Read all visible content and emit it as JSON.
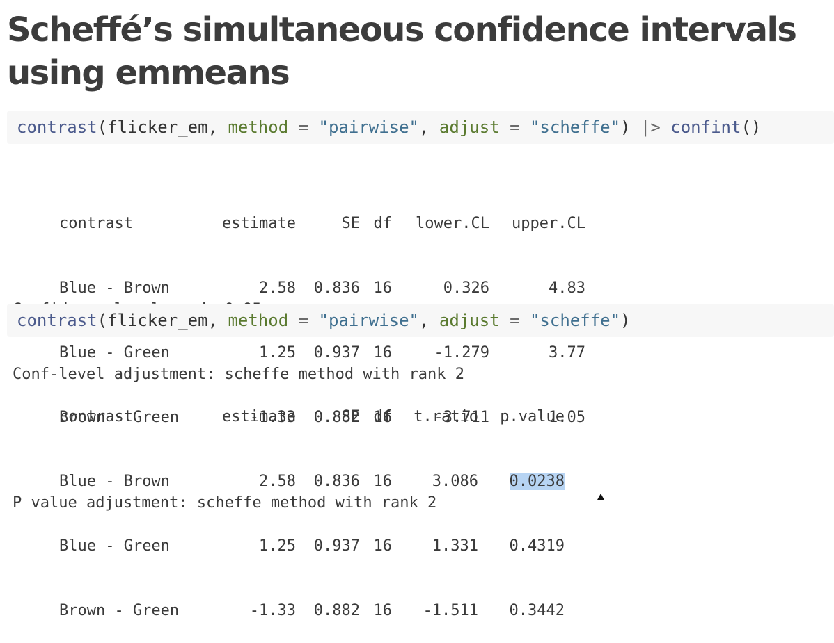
{
  "title": "Scheffé’s simultaneous confidence intervals using emmeans",
  "code1": {
    "fn": "contrast",
    "open": "(",
    "arg": "flicker_em",
    "comma1": ", ",
    "param1": "method",
    "eq1": " = ",
    "val1": "\"pairwise\"",
    "comma2": ", ",
    "param2": "adjust",
    "eq2": " = ",
    "val2": "\"scheffe\"",
    "close": ")",
    "pipe": " |> ",
    "fn2": "confint",
    "parens2": "()"
  },
  "output1": {
    "headers": [
      "contrast",
      "estimate",
      "SE",
      "df",
      "lower.CL",
      "upper.CL"
    ],
    "rows": [
      [
        "Blue - Brown",
        "2.58",
        "0.836",
        "16",
        "0.326",
        "4.83"
      ],
      [
        "Blue - Green",
        "1.25",
        "0.937",
        "16",
        "-1.279",
        "3.77"
      ],
      [
        "Brown - Green",
        "-1.33",
        "0.882",
        "16",
        "-3.711",
        "1.05"
      ]
    ],
    "note1": "Confidence level used: 0.95",
    "note2": "Conf-level adjustment: scheffe method with rank 2"
  },
  "code2": {
    "fn": "contrast",
    "open": "(",
    "arg": "flicker_em",
    "comma1": ", ",
    "param1": "method",
    "eq1": " = ",
    "val1": "\"pairwise\"",
    "comma2": ", ",
    "param2": "adjust",
    "eq2": " = ",
    "val2": "\"scheffe\"",
    "close": ")"
  },
  "output2": {
    "headers": [
      "contrast",
      "estimate",
      "SE",
      "df",
      "t.ratio",
      "p.value"
    ],
    "rows": [
      [
        "Blue - Brown",
        "2.58",
        "0.836",
        "16",
        "3.086",
        "0.0238"
      ],
      [
        "Blue - Green",
        "1.25",
        "0.937",
        "16",
        "1.331",
        "0.4319"
      ],
      [
        "Brown - Green",
        "-1.33",
        "0.882",
        "16",
        "-1.511",
        "0.3442"
      ]
    ],
    "note1": "P value adjustment: scheffe method with rank 2"
  },
  "highlight_color": "#b7d4f3"
}
